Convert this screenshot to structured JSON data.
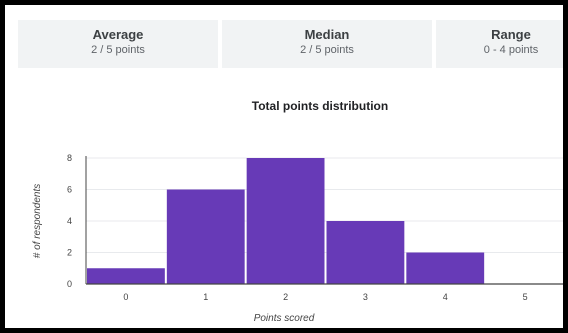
{
  "stats": {
    "average": {
      "label": "Average",
      "value": "2 / 5 points"
    },
    "median": {
      "label": "Median",
      "value": "2 / 5 points"
    },
    "range": {
      "label": "Range",
      "value": "0 - 4 points"
    }
  },
  "chart_data": {
    "type": "bar",
    "title": "Total points distribution",
    "xlabel": "Points scored",
    "ylabel": "# of respondents",
    "categories": [
      "0",
      "1",
      "2",
      "3",
      "4",
      "5"
    ],
    "values": [
      1,
      6,
      8,
      4,
      2,
      0
    ],
    "y_ticks": [
      "0",
      "2",
      "4",
      "6",
      "8"
    ],
    "ylim": [
      0,
      8
    ],
    "grid": true,
    "colors": {
      "bar": "#673ab7",
      "grid": "#e8eaed",
      "axis": "#444444"
    }
  }
}
